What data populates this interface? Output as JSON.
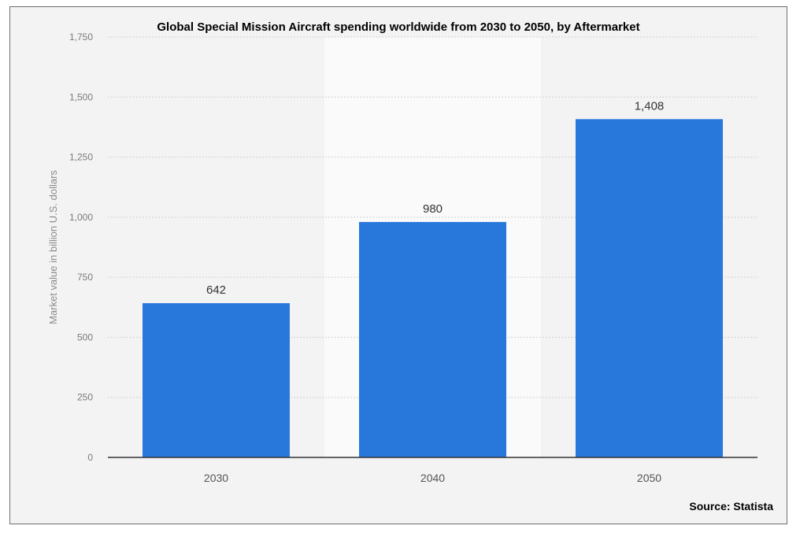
{
  "chart_data": {
    "type": "bar",
    "title": "Global Special Mission Aircraft spending worldwide from 2030 to 2050, by Aftermarket",
    "ylabel": "Market value in billion U.S. dollars",
    "xlabel": "",
    "categories": [
      "2030",
      "2040",
      "2050"
    ],
    "values": [
      642,
      980,
      1408
    ],
    "data_labels": [
      "642",
      "980",
      "1,408"
    ],
    "ylim": [
      0,
      1750
    ],
    "yticks": [
      0,
      250,
      500,
      750,
      1000,
      1250,
      1500,
      1750
    ],
    "ytick_labels": [
      "0",
      "250",
      "500",
      "750",
      "1,000",
      "1,250",
      "1,500",
      "1,750"
    ],
    "grid": true,
    "highlighted_category": "2040",
    "source": "Source: Statista",
    "colors": {
      "bar": "#2878dc",
      "plot_background": "#f3f3f3",
      "highlight_band": "#fafafa",
      "axis": "#333333"
    }
  }
}
